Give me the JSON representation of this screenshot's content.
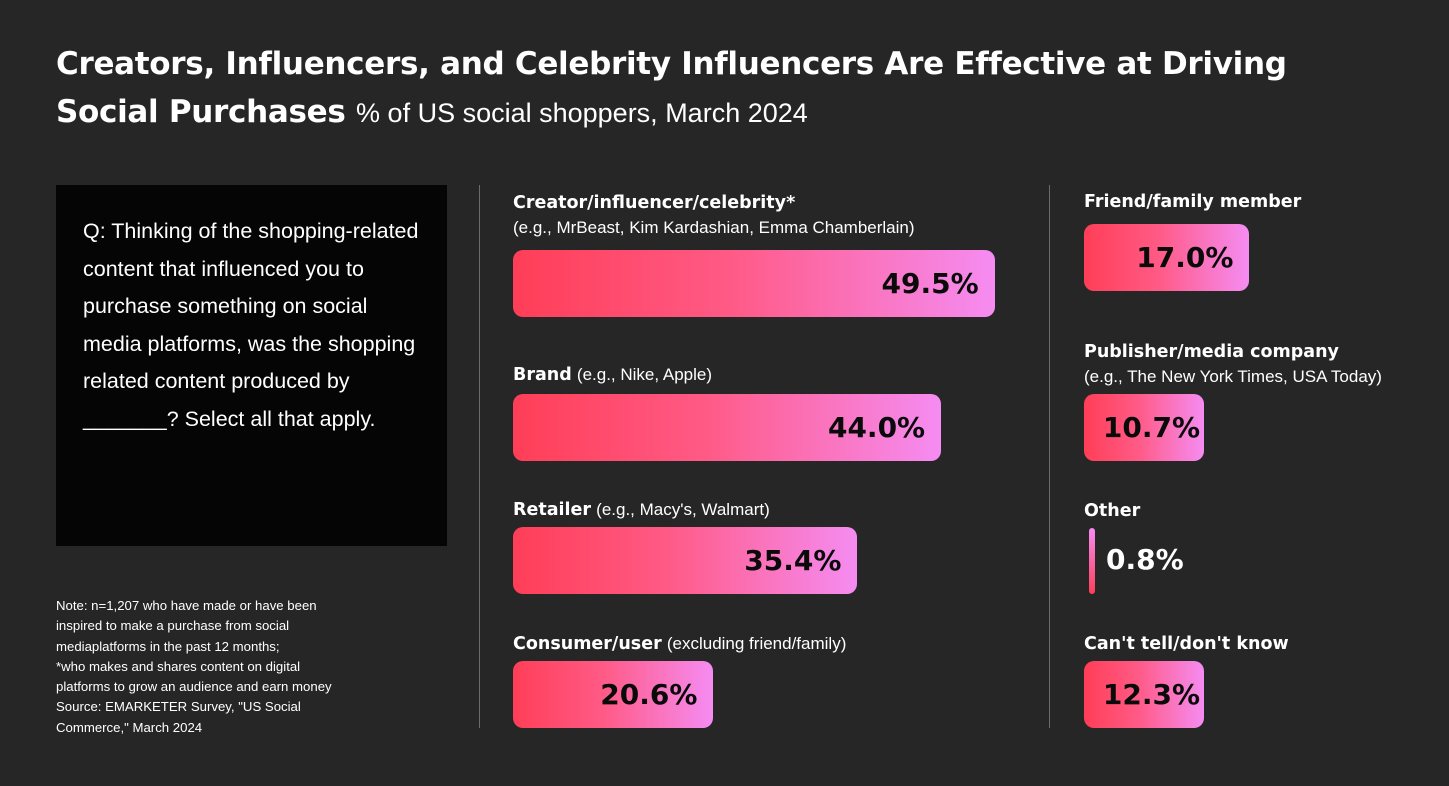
{
  "header": {
    "title": "Creators, Influencers, and Celebrity Influencers Are Effective at Driving Social Purchases",
    "subtitle": "% of US social shoppers, March 2024"
  },
  "question": "Q: Thinking of the shopping-related content that influenced you to purchase something on social media platforms, was the shopping related content produced by _______? Select all that apply.",
  "note": "Note: n=1,207 who have made or have been\ninspired to make a purchase from social\nmediaplatforms in the past 12 months;\n*who makes and shares content on digital\nplatforms to grow an audience and earn money\nSource: EMARKETER Survey, \"US Social\nCommerce,\" March 2024",
  "colors": {
    "background": "#262626",
    "bar_start": "#ff3e57",
    "bar_end": "#f58cf2",
    "box": "#050505"
  },
  "chart_data": {
    "type": "bar",
    "title": "Creators, Influencers, and Celebrity Influencers Are Effective at Driving Social Purchases",
    "subtitle": "% of US social shoppers, March 2024",
    "unit": "%",
    "categories": [
      "Creator/influencer/celebrity*",
      "Brand",
      "Retailer",
      "Consumer/user",
      "Friend/family member",
      "Publisher/media company",
      "Other",
      "Can't tell/don't know"
    ],
    "examples": [
      "(e.g., MrBeast, Kim Kardashian, Emma Chamberlain)",
      "(e.g., Nike, Apple)",
      "(e.g., Macy's, Walmart)",
      "(excluding friend/family)",
      "",
      "(e.g., The New York Times, USA Today)",
      "",
      ""
    ],
    "values": [
      49.5,
      44.0,
      35.4,
      20.6,
      17.0,
      10.7,
      0.8,
      12.3
    ],
    "value_labels": [
      "49.5%",
      "44.0%",
      "35.4%",
      "20.6%",
      "17.0%",
      "10.7%",
      "0.8%",
      "12.3%"
    ]
  }
}
